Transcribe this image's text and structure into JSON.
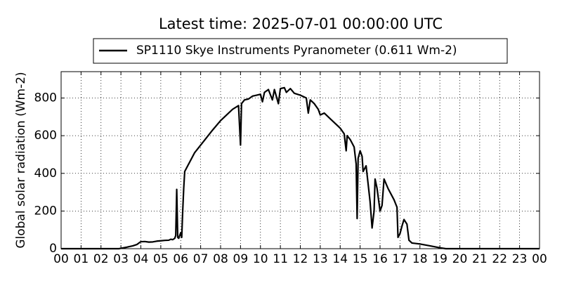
{
  "chart_data": {
    "type": "line",
    "title": "Latest time: 2025-07-01 00:00:00 UTC",
    "y_label": "Global solar radiation (Wm-2)",
    "x": [
      0,
      2.9,
      3.0,
      3.3,
      3.6,
      3.8,
      3.9,
      4.0,
      4.2,
      4.4,
      4.6,
      4.8,
      5.0,
      5.2,
      5.4,
      5.5,
      5.6,
      5.7,
      5.75,
      5.8,
      5.85,
      5.9,
      6.0,
      6.05,
      6.1,
      6.15,
      6.2,
      6.3,
      6.5,
      6.7,
      7.0,
      7.3,
      7.6,
      8.0,
      8.3,
      8.6,
      8.9,
      9.0,
      9.05,
      9.2,
      9.4,
      9.6,
      9.8,
      10.0,
      10.1,
      10.2,
      10.4,
      10.6,
      10.7,
      10.9,
      11.0,
      11.2,
      11.3,
      11.5,
      11.7,
      12.0,
      12.3,
      12.4,
      12.5,
      12.7,
      12.9,
      13.0,
      13.2,
      13.5,
      13.8,
      14.0,
      14.2,
      14.3,
      14.35,
      14.5,
      14.7,
      14.8,
      14.85,
      14.9,
      15.0,
      15.1,
      15.15,
      15.3,
      15.5,
      15.6,
      15.7,
      15.75,
      15.85,
      16.0,
      16.1,
      16.2,
      16.4,
      16.7,
      16.85,
      16.9,
      17.0,
      17.1,
      17.2,
      17.35,
      17.45,
      17.6,
      18.0,
      18.5,
      19.0,
      19.3,
      24
    ],
    "series": [
      {
        "name": "SP1110 Skye Instruments Pyranometer (0.611 Wm-2)",
        "color": "#000000",
        "values": [
          0,
          0,
          2,
          8,
          15,
          22,
          30,
          37,
          38,
          35,
          36,
          40,
          42,
          44,
          45,
          50,
          48,
          55,
          70,
          315,
          60,
          55,
          85,
          60,
          200,
          320,
          410,
          430,
          470,
          510,
          550,
          590,
          630,
          680,
          710,
          740,
          760,
          550,
          770,
          790,
          795,
          810,
          815,
          820,
          780,
          830,
          845,
          790,
          845,
          770,
          850,
          855,
          830,
          850,
          825,
          815,
          800,
          720,
          790,
          770,
          740,
          710,
          720,
          690,
          660,
          640,
          610,
          520,
          600,
          580,
          540,
          450,
          160,
          480,
          520,
          490,
          410,
          440,
          250,
          110,
          200,
          370,
          320,
          200,
          230,
          370,
          320,
          260,
          220,
          60,
          80,
          120,
          155,
          130,
          45,
          30,
          25,
          15,
          5,
          0,
          0
        ]
      }
    ],
    "xlim": [
      0,
      24
    ],
    "xticks": [
      {
        "value": 0,
        "label": "00"
      },
      {
        "value": 1,
        "label": "01"
      },
      {
        "value": 2,
        "label": "02"
      },
      {
        "value": 3,
        "label": "03"
      },
      {
        "value": 4,
        "label": "04"
      },
      {
        "value": 5,
        "label": "05"
      },
      {
        "value": 6,
        "label": "06"
      },
      {
        "value": 7,
        "label": "07"
      },
      {
        "value": 8,
        "label": "08"
      },
      {
        "value": 9,
        "label": "09"
      },
      {
        "value": 10,
        "label": "10"
      },
      {
        "value": 11,
        "label": "11"
      },
      {
        "value": 12,
        "label": "12"
      },
      {
        "value": 13,
        "label": "13"
      },
      {
        "value": 14,
        "label": "14"
      },
      {
        "value": 15,
        "label": "15"
      },
      {
        "value": 16,
        "label": "16"
      },
      {
        "value": 17,
        "label": "17"
      },
      {
        "value": 18,
        "label": "18"
      },
      {
        "value": 19,
        "label": "19"
      },
      {
        "value": 20,
        "label": "20"
      },
      {
        "value": 21,
        "label": "21"
      },
      {
        "value": 22,
        "label": "22"
      },
      {
        "value": 23,
        "label": "23"
      },
      {
        "value": 24,
        "label": "00"
      }
    ],
    "ylim": [
      0,
      940
    ],
    "yticks": [
      0,
      200,
      400,
      600,
      800
    ],
    "grid": true
  }
}
